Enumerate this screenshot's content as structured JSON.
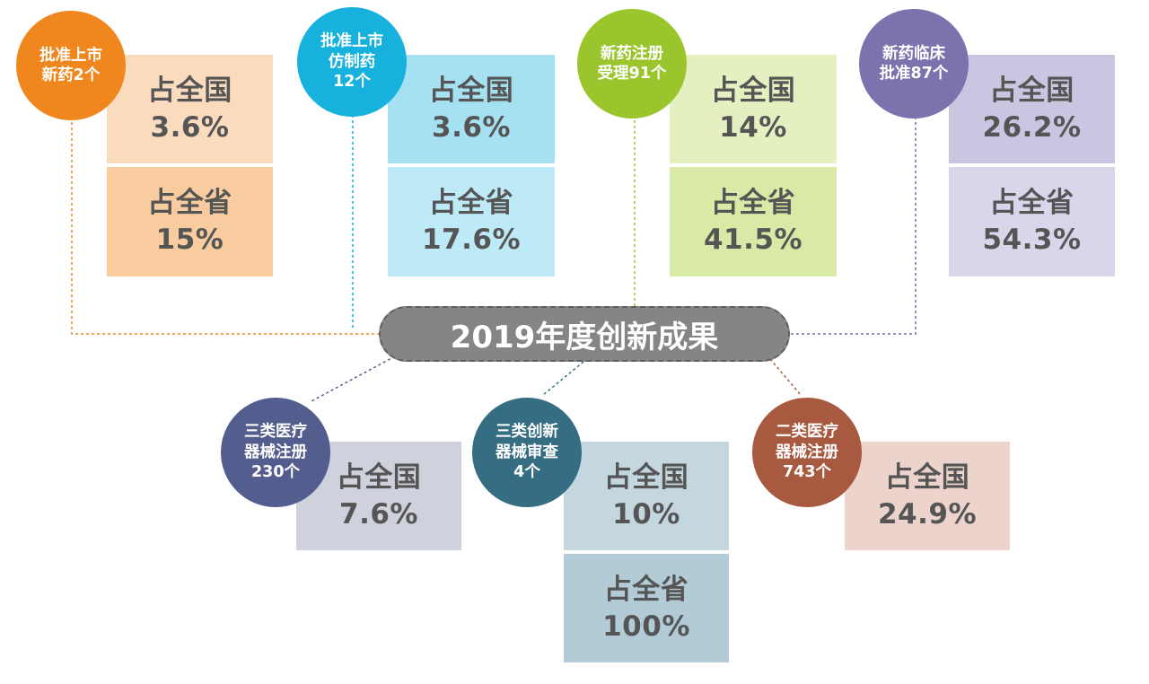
{
  "center_title": "2019年度创新成果",
  "top_items": [
    {
      "circle_lines": [
        "批准上市",
        "新药2个"
      ],
      "color": "#f0861e",
      "boxes": [
        {
          "label": "占全国",
          "value": "3.6%",
          "bg": "#fbdbbd"
        },
        {
          "label": "占全省",
          "value": "15%",
          "bg": "#f9cc9f"
        }
      ]
    },
    {
      "circle_lines": [
        "批准上市",
        "仿制药",
        "12个"
      ],
      "color": "#16b1dc",
      "boxes": [
        {
          "label": "占全国",
          "value": "3.6%",
          "bg": "#a6e1f1"
        },
        {
          "label": "占全省",
          "value": "17.6%",
          "bg": "#bdeaf6"
        }
      ]
    },
    {
      "circle_lines": [
        "新药注册",
        "受理91个"
      ],
      "color": "#9bc52d",
      "boxes": [
        {
          "label": "占全国",
          "value": "14%",
          "bg": "#e5f0c0"
        },
        {
          "label": "占全省",
          "value": "41.5%",
          "bg": "#d9eaa6"
        }
      ]
    },
    {
      "circle_lines": [
        "新药临床",
        "批准87个"
      ],
      "color": "#7c72ad",
      "boxes": [
        {
          "label": "占全国",
          "value": "26.2%",
          "bg": "#cac5e0"
        },
        {
          "label": "占全省",
          "value": "54.3%",
          "bg": "#d9d5ea"
        }
      ]
    }
  ],
  "bottom_items": [
    {
      "circle_lines": [
        "三类医疗",
        "器械注册",
        "230个"
      ],
      "color": "#545e8e",
      "boxes": [
        {
          "label": "占全国",
          "value": "7.6%",
          "bg": "#cfd1dd"
        }
      ]
    },
    {
      "circle_lines": [
        "三类创新",
        "器械审查",
        "4个"
      ],
      "color": "#356d83",
      "boxes": [
        {
          "label": "占全国",
          "value": "10%",
          "bg": "#c5d7de"
        },
        {
          "label": "占全省",
          "value": "100%",
          "bg": "#b2cbd6"
        }
      ]
    },
    {
      "circle_lines": [
        "二类医疗",
        "器械注册",
        "743个"
      ],
      "color": "#a85a40",
      "boxes": [
        {
          "label": "占全国",
          "value": "24.9%",
          "bg": "#ecd4cc"
        }
      ]
    }
  ]
}
